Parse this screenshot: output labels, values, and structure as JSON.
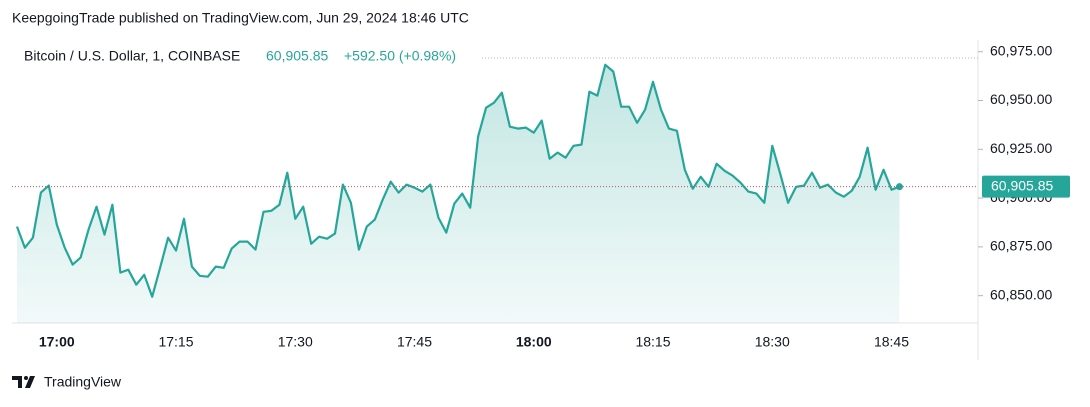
{
  "header": {
    "published": "KeepgoingTrade published on TradingView.com, Jun 29, 2024 18:46 UTC"
  },
  "footer": {
    "brand": "TradingView"
  },
  "chart_data": {
    "type": "area",
    "symbol": "Bitcoin / U.S. Dollar, 1, COINBASE",
    "price": "60,905.85",
    "change": "+592.50 (+0.98%)",
    "color": "#26a69a",
    "last_price": {
      "value": 60905.85,
      "label": "60,905.85"
    },
    "categories": [
      null,
      null,
      null,
      null,
      null,
      "17:00",
      null,
      null,
      null,
      null,
      null,
      null,
      null,
      null,
      null,
      null,
      null,
      null,
      null,
      null,
      "17:15",
      null,
      null,
      null,
      null,
      null,
      null,
      null,
      null,
      null,
      null,
      null,
      null,
      null,
      null,
      "17:30",
      null,
      null,
      null,
      null,
      null,
      null,
      null,
      null,
      null,
      null,
      null,
      null,
      null,
      null,
      "17:45",
      null,
      null,
      null,
      null,
      null,
      null,
      null,
      null,
      null,
      null,
      null,
      null,
      null,
      null,
      "18:00",
      null,
      null,
      null,
      null,
      null,
      null,
      null,
      null,
      null,
      null,
      null,
      null,
      null,
      null,
      "18:15",
      null,
      null,
      null,
      null,
      null,
      null,
      null,
      null,
      null,
      null,
      null,
      null,
      null,
      null,
      "18:30",
      null,
      null,
      null,
      null,
      null,
      null,
      null,
      null,
      null,
      null,
      null,
      null,
      null,
      null,
      "18:45",
      null
    ],
    "values": [
      60885.4,
      60874.6,
      60879.7,
      60902.8,
      60906.4,
      60886.4,
      60874.6,
      60865.9,
      60869.5,
      60883.8,
      60895.6,
      60881.3,
      60896.6,
      60861.8,
      60863.3,
      60855.6,
      60860.7,
      60849.5,
      60864.3,
      60879.7,
      60873.1,
      60889.4,
      60864.9,
      60860.2,
      60859.7,
      60864.9,
      60864.3,
      60874.1,
      60877.7,
      60877.7,
      60873.6,
      60893.0,
      60893.5,
      60896.6,
      60913.0,
      60889.4,
      60895.6,
      60876.6,
      60880.2,
      60879.2,
      60881.8,
      60906.9,
      60897.6,
      60873.6,
      60885.4,
      60889.0,
      60899.2,
      60908.4,
      60902.8,
      60906.9,
      60905.3,
      60903.3,
      60906.9,
      60890.0,
      60882.3,
      60897.1,
      60902.3,
      60895.1,
      60931.5,
      60946.3,
      60948.9,
      60954.0,
      60936.6,
      60935.6,
      60936.1,
      60933.5,
      60939.7,
      60920.2,
      60923.3,
      60920.7,
      60926.8,
      60927.4,
      60954.5,
      60952.5,
      60968.3,
      60964.8,
      60946.8,
      60946.8,
      60938.6,
      60945.3,
      60959.6,
      60945.3,
      60935.6,
      60934.5,
      60914.5,
      60904.8,
      60910.9,
      60905.8,
      60917.6,
      60914.0,
      60911.5,
      60907.9,
      60903.3,
      60902.3,
      60897.6,
      60926.8,
      60912.5,
      60897.6,
      60905.8,
      60906.4,
      60913.0,
      60905.3,
      60906.9,
      60902.8,
      60900.7,
      60903.8,
      60910.9,
      60925.8,
      60904.3,
      60914.5,
      60904.3,
      60905.85
    ],
    "ylim": [
      60836,
      60981
    ],
    "yticks": [
      {
        "value": 60850,
        "label": "60,850.00"
      },
      {
        "value": 60875,
        "label": "60,875.00"
      },
      {
        "value": 60900,
        "label": "60,900.00"
      },
      {
        "value": 60925,
        "label": "60,925.00"
      },
      {
        "value": 60950,
        "label": "60,950.00"
      },
      {
        "value": 60975,
        "label": "60,975.00"
      }
    ]
  }
}
